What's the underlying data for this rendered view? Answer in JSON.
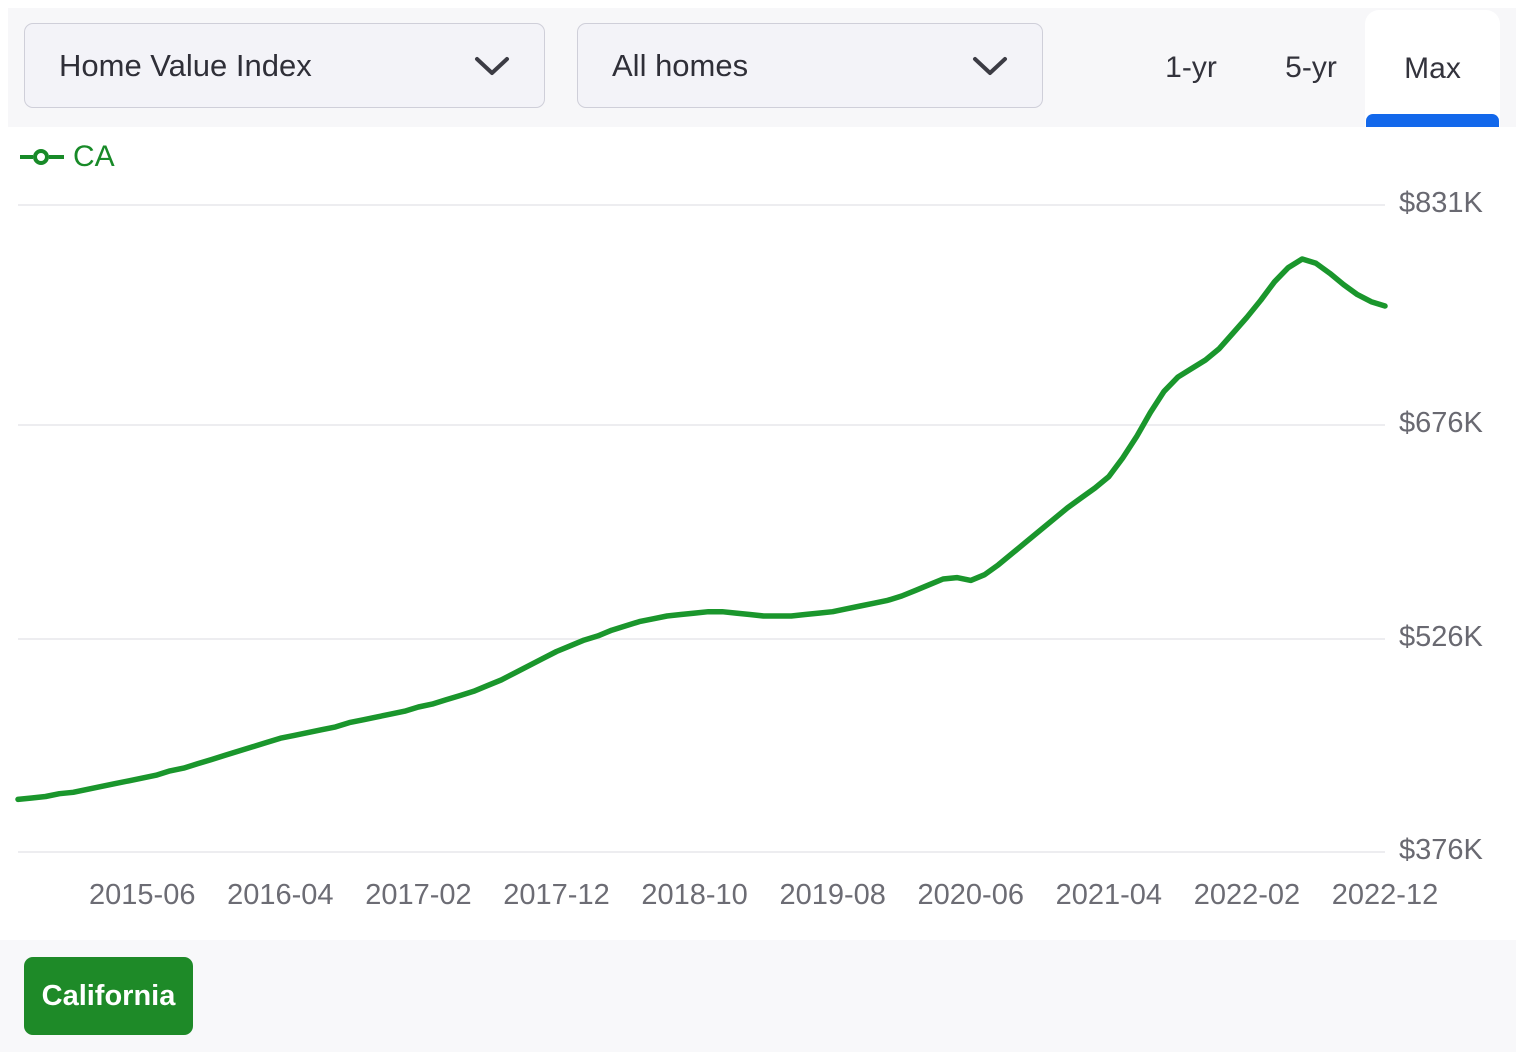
{
  "header": {
    "metric_dropdown": {
      "value": "Home Value Index"
    },
    "home_type_dropdown": {
      "value": "All homes"
    },
    "range_tabs": [
      {
        "label": "1-yr",
        "selected": false
      },
      {
        "label": "5-yr",
        "selected": false
      },
      {
        "label": "Max",
        "selected": true
      }
    ]
  },
  "legend": {
    "series_label": "CA"
  },
  "chart_data": {
    "type": "line",
    "title": "",
    "xlabel": "",
    "ylabel": "",
    "y_axis_side": "right",
    "grid": true,
    "legend_position": "top-left",
    "values_unit": "USD thousands",
    "ylim_displayed": [
      376,
      831
    ],
    "y_ticks": [
      {
        "label": "$831K",
        "value": 831
      },
      {
        "label": "$676K",
        "value": 676
      },
      {
        "label": "$526K",
        "value": 526
      },
      {
        "label": "$376K",
        "value": 376
      }
    ],
    "x_tick_labels": [
      "2015-06",
      "2016-04",
      "2017-02",
      "2017-12",
      "2018-10",
      "2019-08",
      "2020-06",
      "2021-04",
      "2022-02",
      "2022-12"
    ],
    "x": [
      "2014-09",
      "2014-10",
      "2014-11",
      "2014-12",
      "2015-01",
      "2015-02",
      "2015-03",
      "2015-04",
      "2015-05",
      "2015-06",
      "2015-07",
      "2015-08",
      "2015-09",
      "2015-10",
      "2015-11",
      "2015-12",
      "2016-01",
      "2016-02",
      "2016-03",
      "2016-04",
      "2016-05",
      "2016-06",
      "2016-07",
      "2016-08",
      "2016-09",
      "2016-10",
      "2016-11",
      "2016-12",
      "2017-01",
      "2017-02",
      "2017-03",
      "2017-04",
      "2017-05",
      "2017-06",
      "2017-07",
      "2017-08",
      "2017-09",
      "2017-10",
      "2017-11",
      "2017-12",
      "2018-01",
      "2018-02",
      "2018-03",
      "2018-04",
      "2018-05",
      "2018-06",
      "2018-07",
      "2018-08",
      "2018-09",
      "2018-10",
      "2018-11",
      "2018-12",
      "2019-01",
      "2019-02",
      "2019-03",
      "2019-04",
      "2019-05",
      "2019-06",
      "2019-07",
      "2019-08",
      "2019-09",
      "2019-10",
      "2019-11",
      "2019-12",
      "2020-01",
      "2020-02",
      "2020-03",
      "2020-04",
      "2020-05",
      "2020-06",
      "2020-07",
      "2020-08",
      "2020-09",
      "2020-10",
      "2020-11",
      "2020-12",
      "2021-01",
      "2021-02",
      "2021-03",
      "2021-04",
      "2021-05",
      "2021-06",
      "2021-07",
      "2021-08",
      "2021-09",
      "2021-10",
      "2021-11",
      "2021-12",
      "2022-01",
      "2022-02",
      "2022-03",
      "2022-04",
      "2022-05",
      "2022-06",
      "2022-07",
      "2022-08",
      "2022-09",
      "2022-10",
      "2022-11",
      "2022-12"
    ],
    "series": [
      {
        "name": "CA",
        "color": "#1a962c",
        "values": [
          413,
          414,
          415,
          417,
          418,
          420,
          422,
          424,
          426,
          428,
          430,
          433,
          435,
          438,
          441,
          444,
          447,
          450,
          453,
          456,
          458,
          460,
          462,
          464,
          467,
          469,
          471,
          473,
          475,
          478,
          480,
          483,
          486,
          489,
          493,
          497,
          502,
          507,
          512,
          517,
          521,
          525,
          528,
          532,
          535,
          538,
          540,
          542,
          543,
          544,
          545,
          545,
          544,
          543,
          542,
          542,
          542,
          543,
          544,
          545,
          547,
          549,
          551,
          553,
          556,
          560,
          564,
          568,
          569,
          567,
          571,
          578,
          586,
          594,
          602,
          610,
          618,
          625,
          632,
          640,
          653,
          668,
          685,
          700,
          710,
          716,
          722,
          730,
          741,
          752,
          764,
          777,
          787,
          793,
          790,
          783,
          775,
          768,
          763,
          760
        ]
      }
    ]
  },
  "footer": {
    "region_button_label": "California"
  },
  "colors": {
    "line_green": "#1a962c",
    "legend_green": "#188a28",
    "button_green": "#1e8a28",
    "active_tab_blue": "#1368eb",
    "controls_bg": "#f7f7f9",
    "footer_bg": "#f8f8fa",
    "gridline": "#ededf0",
    "axis_text": "#696971"
  }
}
